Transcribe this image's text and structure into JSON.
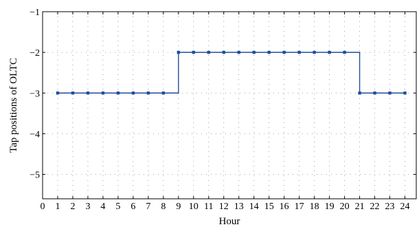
{
  "chart_data": {
    "type": "line",
    "title": "",
    "xlabel": "Hour",
    "ylabel": "Tap positions of OLTC",
    "xlim": [
      0,
      24.75
    ],
    "ylim": [
      -5.6,
      -1
    ],
    "xticks": [
      0,
      1,
      2,
      3,
      4,
      5,
      6,
      7,
      8,
      9,
      10,
      11,
      12,
      13,
      14,
      15,
      16,
      17,
      18,
      19,
      20,
      21,
      22,
      23,
      24
    ],
    "xtick_labels": [
      "0",
      "1",
      "2",
      "3",
      "4",
      "5",
      "6",
      "7",
      "8",
      "9",
      "10",
      "11",
      "12",
      "13",
      "14",
      "15",
      "16",
      "17",
      "18",
      "19",
      "20",
      "21",
      "22",
      "23",
      "24"
    ],
    "yticks": [
      -1,
      -2,
      -3,
      -4,
      -5
    ],
    "ytick_labels": [
      "−1",
      "−2",
      "−3",
      "−4",
      "−5"
    ],
    "grid": true,
    "step": "pre",
    "series": [
      {
        "color": "#1f4e9c",
        "marker": "square",
        "x": [
          1,
          2,
          3,
          4,
          5,
          6,
          7,
          8,
          9,
          10,
          11,
          12,
          13,
          14,
          15,
          16,
          17,
          18,
          19,
          20,
          21,
          22,
          23,
          24
        ],
        "y": [
          -3,
          -3,
          -3,
          -3,
          -3,
          -3,
          -3,
          -3,
          -2,
          -2,
          -2,
          -2,
          -2,
          -2,
          -2,
          -2,
          -2,
          -2,
          -2,
          -2,
          -3,
          -3,
          -3,
          -3
        ]
      }
    ]
  }
}
